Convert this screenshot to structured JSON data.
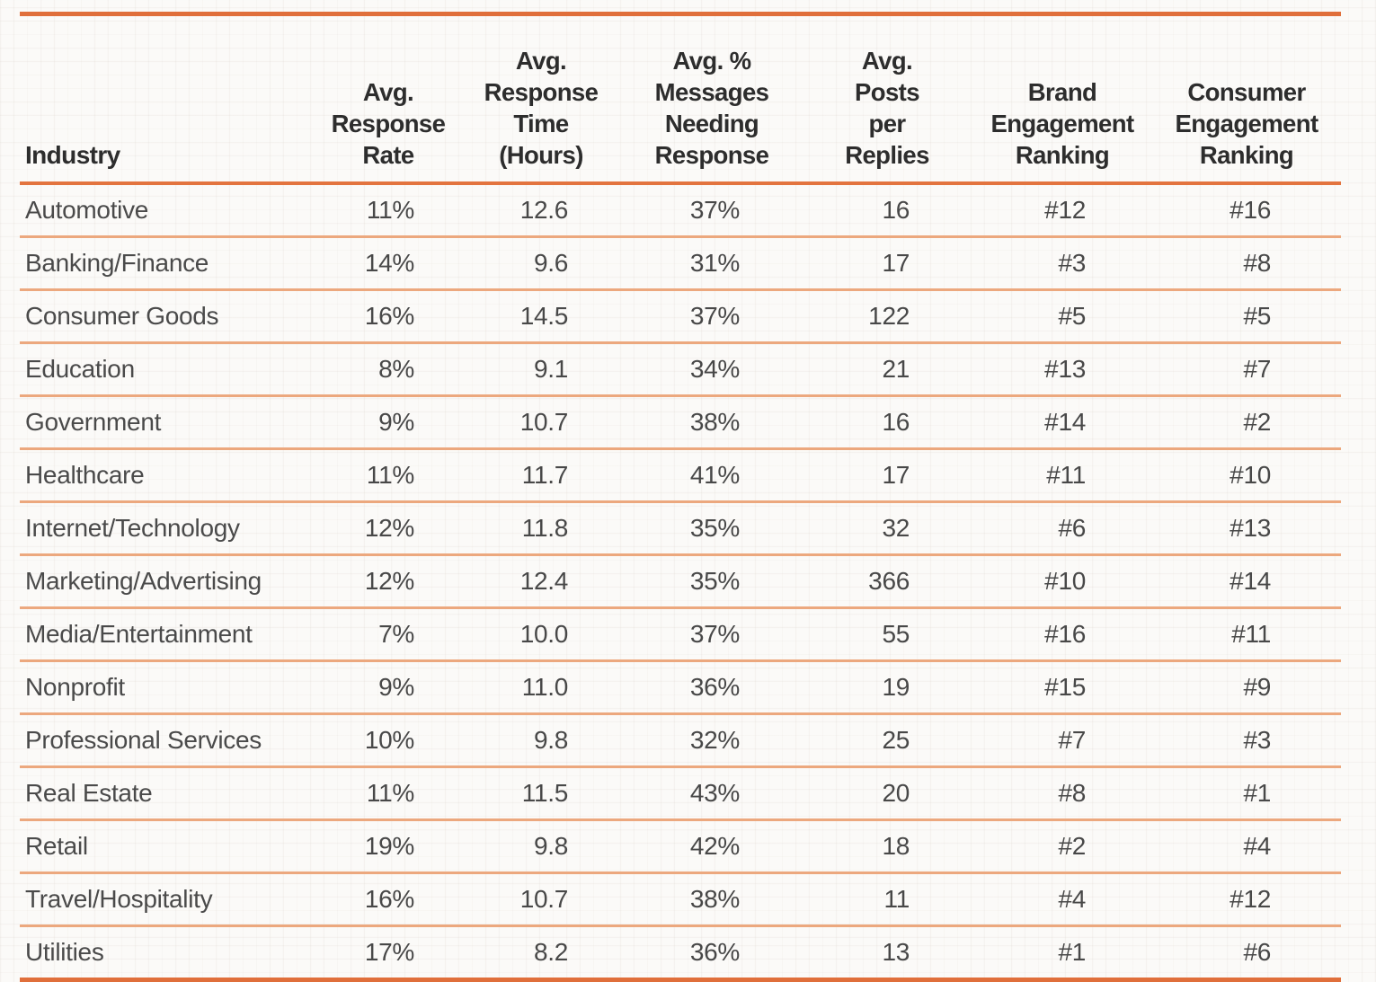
{
  "accent_colors": {
    "rule_heavy": "#e06f3b",
    "rule_header": "#e3743f",
    "rule_light": "#eca87e",
    "header_text": "#2d2d2d",
    "body_text": "#484848",
    "background": "#fbfaf8"
  },
  "table": {
    "header_labels": [
      "Industry",
      "Avg.\nResponse\nRate",
      "Avg.\nResponse\nTime\n(Hours)",
      "Avg. %\nMessages\nNeeding\nResponse",
      "Avg.\nPosts\nper\nReplies",
      "Brand\nEngagement\nRanking",
      "Consumer\nEngagement\nRanking"
    ]
  },
  "chart_data": {
    "type": "table",
    "columns": [
      "Industry",
      "Avg. Response Rate",
      "Avg. Response Time (Hours)",
      "Avg. % Messages Needing Response",
      "Avg. Posts per Replies",
      "Brand Engagement Ranking",
      "Consumer Engagement Ranking"
    ],
    "rows": [
      [
        "Automotive",
        "11%",
        "12.6",
        "37%",
        "16",
        "#12",
        "#16"
      ],
      [
        "Banking/Finance",
        "14%",
        "9.6",
        "31%",
        "17",
        "#3",
        "#8"
      ],
      [
        "Consumer Goods",
        "16%",
        "14.5",
        "37%",
        "122",
        "#5",
        "#5"
      ],
      [
        "Education",
        "8%",
        "9.1",
        "34%",
        "21",
        "#13",
        "#7"
      ],
      [
        "Government",
        "9%",
        "10.7",
        "38%",
        "16",
        "#14",
        "#2"
      ],
      [
        "Healthcare",
        "11%",
        "11.7",
        "41%",
        "17",
        "#11",
        "#10"
      ],
      [
        "Internet/Technology",
        "12%",
        "11.8",
        "35%",
        "32",
        "#6",
        "#13"
      ],
      [
        "Marketing/Advertising",
        "12%",
        "12.4",
        "35%",
        "366",
        "#10",
        "#14"
      ],
      [
        "Media/Entertainment",
        "7%",
        "10.0",
        "37%",
        "55",
        "#16",
        "#11"
      ],
      [
        "Nonprofit",
        "9%",
        "11.0",
        "36%",
        "19",
        "#15",
        "#9"
      ],
      [
        "Professional Services",
        "10%",
        "9.8",
        "32%",
        "25",
        "#7",
        "#3"
      ],
      [
        "Real Estate",
        "11%",
        "11.5",
        "43%",
        "20",
        "#8",
        "#1"
      ],
      [
        "Retail",
        "19%",
        "9.8",
        "42%",
        "18",
        "#2",
        "#4"
      ],
      [
        "Travel/Hospitality",
        "16%",
        "10.7",
        "38%",
        "11",
        "#4",
        "#12"
      ],
      [
        "Utilities",
        "17%",
        "8.2",
        "36%",
        "13",
        "#1",
        "#6"
      ]
    ]
  }
}
